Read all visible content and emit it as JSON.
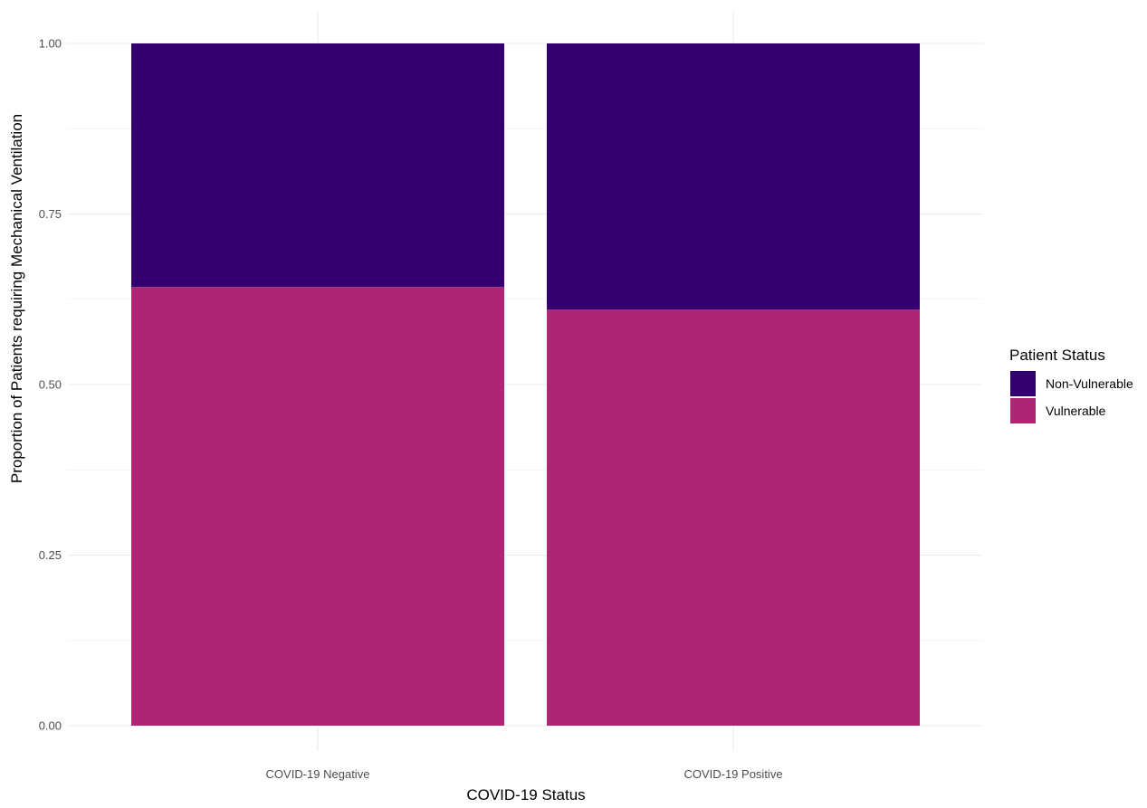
{
  "chart_data": {
    "type": "bar",
    "stacked": true,
    "categories": [
      "COVID-19 Negative",
      "COVID-19 Positive"
    ],
    "series": [
      {
        "name": "Vulnerable",
        "values": [
          0.643,
          0.61
        ],
        "color": "#AE2573"
      },
      {
        "name": "Non-Vulnerable",
        "values": [
          0.357,
          0.39
        ],
        "color": "#33006F"
      }
    ],
    "legend_order": [
      "Non-Vulnerable",
      "Vulnerable"
    ],
    "xlabel": "COVID-19 Status",
    "ylabel": "Proportion of Patients requiring Mechanical Ventilation",
    "ylim": [
      0,
      1
    ],
    "yticks": [
      "0.00",
      "0.25",
      "0.50",
      "0.75",
      "1.00"
    ],
    "legend_title": "Patient Status",
    "legend_position": "right",
    "grid": true,
    "grid_color": "#EBEBEB",
    "background": "#FFFFFF"
  }
}
